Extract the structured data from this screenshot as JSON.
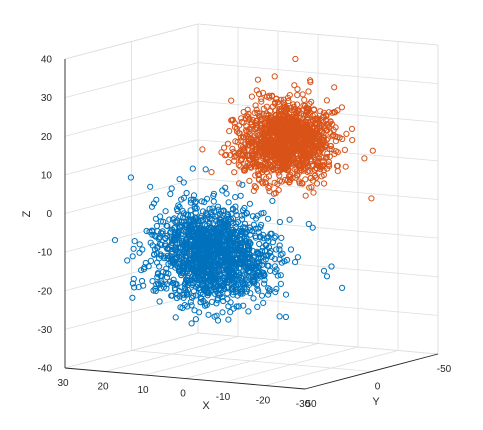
{
  "colors": {
    "background": "#ffffff",
    "grid": "#dedede",
    "axis": "#262626"
  },
  "chart_data": {
    "type": "scatter",
    "projection": "3d",
    "title": "",
    "xlabel": "X",
    "ylabel": "Y",
    "zlabel": "Z",
    "xlim": [
      -30,
      30
    ],
    "ylim": [
      -50,
      50
    ],
    "zlim": [
      -40,
      40
    ],
    "x_ticks": [
      30,
      20,
      10,
      0,
      -10,
      -20,
      -30
    ],
    "y_ticks": [
      50,
      0,
      -50
    ],
    "z_ticks": [
      40,
      30,
      20,
      10,
      0,
      -10,
      -20,
      -30,
      -40
    ],
    "x_tick_labels": [
      "30",
      "20",
      "10",
      "0",
      "-10",
      "-20",
      "-30"
    ],
    "y_tick_labels": [
      "50",
      "0",
      "-50"
    ],
    "z_tick_labels": [
      "40",
      "30",
      "20",
      "10",
      "0",
      "-10",
      "-20",
      "-30",
      "-40"
    ],
    "grid": true,
    "marker": "open-circle",
    "series": [
      {
        "color": "#0072bd",
        "cluster": {
          "center": [
            9,
            2,
            -13
          ],
          "spread": [
            11,
            18,
            10
          ],
          "count": 1500
        },
        "outliers": [
          [
            22,
            10,
            4
          ],
          [
            -12,
            15,
            -26
          ],
          [
            -20,
            -8,
            -20
          ],
          [
            -22,
            6,
            -13
          ],
          [
            16,
            -4,
            8
          ],
          [
            -15,
            2,
            -3
          ]
        ]
      },
      {
        "color": "#d95319",
        "cluster": {
          "center": [
            -7,
            -5,
            17
          ],
          "spread": [
            8,
            16,
            8
          ],
          "count": 1300
        },
        "outliers": [
          [
            -5,
            -18,
            37
          ],
          [
            2,
            -10,
            29
          ],
          [
            -27,
            -10,
            16
          ],
          [
            -25,
            -15,
            3
          ],
          [
            10,
            0,
            8
          ],
          [
            -12,
            -8,
            33
          ]
        ]
      }
    ]
  }
}
